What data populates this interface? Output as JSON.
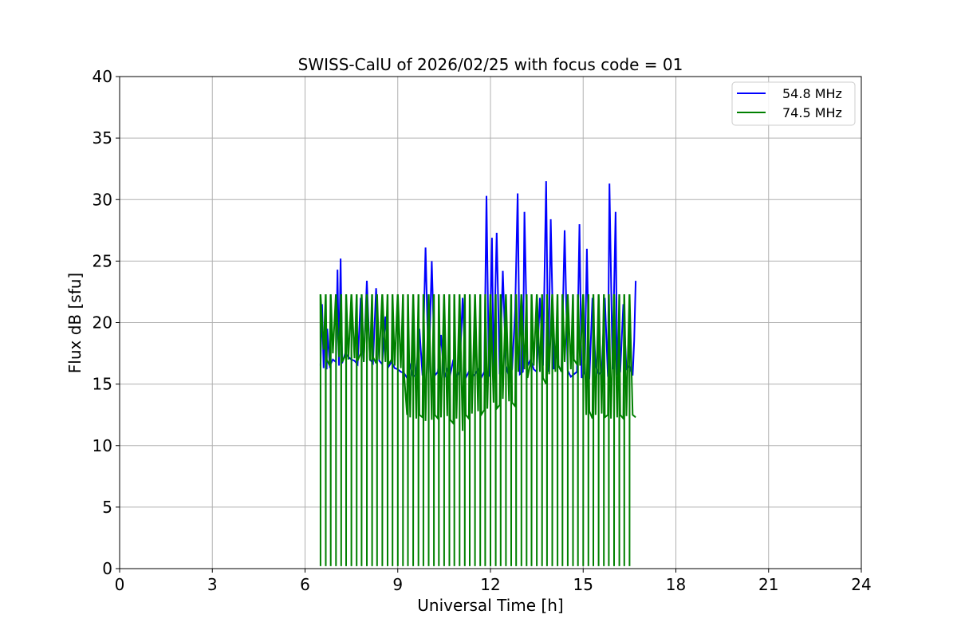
{
  "chart_data": {
    "type": "line",
    "title": "SWISS-CalU of 2026/02/25 with focus code = 01",
    "xlabel": "Universal Time [h]",
    "ylabel": "Flux dB [sfu]",
    "xlim": [
      0,
      24
    ],
    "ylim": [
      0,
      40
    ],
    "xticks": [
      0,
      3,
      6,
      9,
      12,
      15,
      18,
      21,
      24
    ],
    "yticks": [
      0,
      5,
      10,
      15,
      20,
      25,
      30,
      35,
      40
    ],
    "grid": true,
    "legend_position": "top-right",
    "series": [
      {
        "name": "54.8 MHz",
        "color": "#0000ff",
        "x": [
          6.5,
          6.55,
          6.6,
          6.65,
          6.7,
          6.72,
          6.8,
          6.9,
          7.0,
          7.05,
          7.1,
          7.15,
          7.2,
          7.3,
          7.4,
          7.5,
          7.6,
          7.7,
          7.8,
          7.9,
          8.0,
          8.1,
          8.2,
          8.3,
          8.4,
          8.5,
          8.6,
          8.7,
          8.8,
          8.9,
          9.0,
          9.1,
          9.2,
          9.3,
          9.4,
          9.5,
          9.6,
          9.7,
          9.8,
          9.9,
          10.0,
          10.1,
          10.2,
          10.3,
          10.4,
          10.5,
          10.6,
          10.7,
          10.8,
          10.9,
          11.0,
          11.1,
          11.2,
          11.3,
          11.4,
          11.5,
          11.6,
          11.7,
          11.8,
          11.87,
          11.95,
          12.05,
          12.1,
          12.2,
          12.3,
          12.4,
          12.5,
          12.6,
          12.7,
          12.8,
          12.88,
          12.95,
          13.05,
          13.1,
          13.2,
          13.3,
          13.4,
          13.5,
          13.6,
          13.7,
          13.8,
          13.87,
          13.95,
          14.05,
          14.1,
          14.2,
          14.3,
          14.4,
          14.5,
          14.6,
          14.7,
          14.8,
          14.88,
          14.95,
          15.05,
          15.12,
          15.2,
          15.3,
          15.4,
          15.5,
          15.6,
          15.7,
          15.8,
          15.85,
          15.95,
          16.05,
          16.1,
          16.2,
          16.3,
          16.4,
          16.5,
          16.6,
          16.65,
          16.7
        ],
        "y": [
          16.5,
          21.5,
          16.3,
          20.5,
          16.2,
          19.5,
          16.5,
          17.0,
          16.8,
          24.3,
          16.5,
          25.2,
          16.7,
          17.5,
          17.2,
          17.0,
          16.9,
          16.6,
          22.0,
          16.8,
          23.4,
          17.0,
          16.7,
          22.8,
          16.9,
          16.6,
          20.5,
          16.4,
          16.8,
          16.3,
          16.2,
          16.0,
          15.9,
          15.5,
          16.5,
          15.6,
          15.8,
          19.5,
          15.7,
          26.1,
          15.8,
          25.0,
          15.7,
          16.0,
          19.0,
          15.5,
          16.2,
          15.8,
          17.0,
          15.6,
          16.0,
          22.0,
          15.5,
          16.0,
          15.6,
          15.8,
          16.2,
          15.5,
          16.0,
          30.3,
          15.6,
          26.9,
          16.0,
          27.3,
          15.8,
          24.2,
          16.5,
          15.6,
          16.2,
          21.0,
          30.5,
          15.8,
          16.0,
          29.0,
          16.5,
          17.0,
          16.2,
          16.0,
          22.0,
          16.5,
          31.5,
          16.0,
          28.4,
          16.2,
          18.0,
          16.5,
          16.0,
          27.5,
          16.1,
          15.6,
          15.8,
          16.0,
          28.0,
          15.5,
          16.0,
          26.0,
          15.4,
          22.0,
          16.5,
          15.8,
          16.0,
          22.0,
          15.6,
          31.3,
          16.2,
          29.0,
          15.8,
          16.0,
          21.5,
          16.2,
          16.5,
          15.7,
          18.5,
          23.4
        ]
      },
      {
        "name": "74.5 MHz",
        "color": "#008000",
        "x": [
          6.5,
          6.6,
          6.7,
          6.8,
          6.9,
          7.0,
          7.1,
          7.2,
          7.3,
          7.4,
          7.5,
          7.6,
          7.7,
          7.8,
          7.9,
          8.0,
          8.1,
          8.2,
          8.3,
          8.4,
          8.5,
          8.6,
          8.7,
          8.8,
          8.9,
          9.0,
          9.1,
          9.2,
          9.3,
          9.4,
          9.5,
          9.6,
          9.7,
          9.8,
          9.9,
          10.0,
          10.1,
          10.2,
          10.3,
          10.4,
          10.5,
          10.6,
          10.7,
          10.8,
          10.9,
          11.0,
          11.1,
          11.2,
          11.3,
          11.4,
          11.5,
          11.6,
          11.7,
          11.8,
          11.9,
          12.0,
          12.1,
          12.2,
          12.3,
          12.4,
          12.5,
          12.6,
          12.7,
          12.8,
          12.9,
          13.0,
          13.1,
          13.2,
          13.3,
          13.4,
          13.5,
          13.6,
          13.7,
          13.8,
          13.9,
          14.0,
          14.1,
          14.2,
          14.3,
          14.4,
          14.5,
          14.6,
          14.7,
          14.8,
          14.9,
          15.0,
          15.1,
          15.2,
          15.3,
          15.4,
          15.5,
          15.6,
          15.7,
          15.8,
          15.9,
          16.0,
          16.1,
          16.2,
          16.3,
          16.4,
          16.5,
          16.6,
          16.7
        ],
        "y": [
          17.2,
          17.8,
          17.0,
          16.5,
          17.5,
          17.8,
          17.2,
          16.8,
          17.3,
          17.0,
          16.8,
          17.1,
          16.9,
          17.5,
          16.8,
          17.4,
          16.9,
          17.2,
          16.7,
          17.0,
          16.5,
          16.8,
          16.6,
          17.0,
          16.5,
          16.8,
          16.3,
          16.0,
          12.5,
          12.3,
          12.6,
          12.2,
          12.5,
          12.3,
          12.0,
          12.4,
          12.1,
          12.5,
          12.2,
          12.3,
          12.0,
          12.4,
          12.1,
          11.8,
          12.2,
          11.5,
          11.2,
          12.5,
          12.2,
          12.6,
          12.4,
          12.8,
          12.5,
          12.9,
          13.0,
          13.2,
          13.5,
          13.0,
          13.3,
          13.8,
          14.0,
          13.6,
          13.5,
          13.2,
          16.0,
          15.8,
          16.2,
          15.5,
          16.8,
          16.5,
          16.2,
          16.0,
          15.5,
          15.0,
          15.8,
          15.5,
          16.0,
          16.5,
          16.0,
          16.8,
          16.5,
          16.2,
          17.0,
          16.6,
          16.5,
          13.0,
          12.5,
          12.8,
          12.2,
          12.5,
          12.0,
          12.6,
          12.3,
          12.5,
          12.2,
          12.8,
          12.3,
          12.5,
          12.2,
          12.4,
          12.0,
          12.5,
          12.3
        ],
        "spike_times": [
          6.5,
          6.67,
          6.83,
          7.0,
          7.17,
          7.33,
          7.5,
          7.67,
          7.83,
          8.0,
          8.17,
          8.33,
          8.5,
          8.67,
          8.83,
          9.0,
          9.17,
          9.33,
          9.5,
          9.67,
          9.83,
          10.0,
          10.17,
          10.33,
          10.5,
          10.67,
          10.83,
          11.0,
          11.17,
          11.33,
          11.5,
          11.67,
          11.83,
          12.0,
          12.17,
          12.33,
          12.5,
          12.67,
          12.83,
          13.0,
          13.17,
          13.33,
          13.5,
          13.67,
          13.83,
          14.0,
          14.17,
          14.33,
          14.5,
          14.67,
          14.83,
          15.0,
          15.17,
          15.33,
          15.5,
          15.67,
          15.83,
          16.0,
          16.17,
          16.33,
          16.5
        ],
        "spike_high": 22.3,
        "spike_low": 0.2
      }
    ]
  }
}
